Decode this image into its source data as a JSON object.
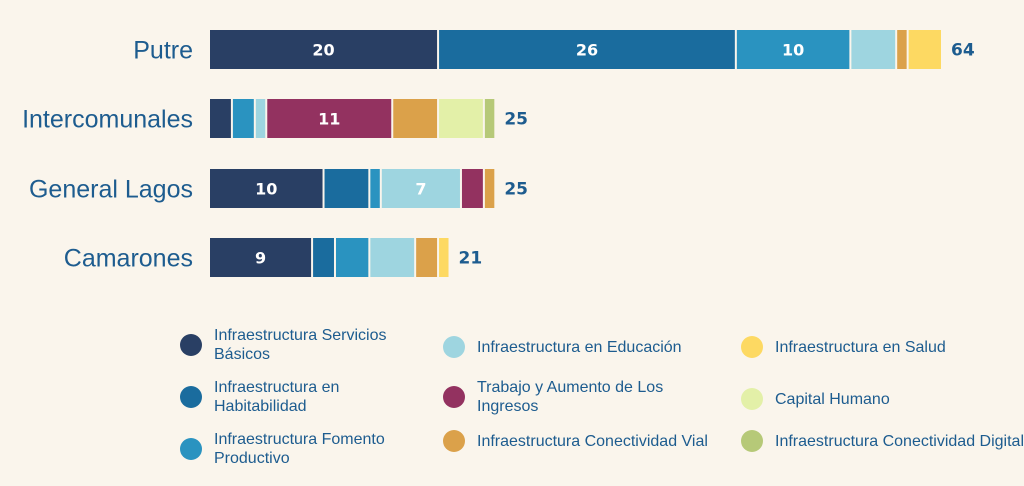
{
  "chart_data": {
    "type": "bar",
    "orientation": "horizontal",
    "stacked": true,
    "title": "",
    "xlabel": "",
    "ylabel": "",
    "xlim": [
      0,
      64
    ],
    "grid": false,
    "legend_position": "bottom",
    "categories": [
      "Putre",
      "Intercomunales",
      "General Lagos",
      "Camarones"
    ],
    "totals": [
      64,
      25,
      25,
      21
    ],
    "series": [
      {
        "name": "Infraestructura Servicios Básicos",
        "color": "#293f64",
        "values": [
          20,
          2,
          10,
          9
        ],
        "labels": [
          "20",
          "",
          "10",
          "9"
        ]
      },
      {
        "name": "Infraestructura en Habitabilidad",
        "color": "#1a6c9e",
        "values": [
          26,
          0,
          4,
          2
        ],
        "labels": [
          "26",
          "",
          "",
          ""
        ]
      },
      {
        "name": "Infraestructura Fomento Productivo",
        "color": "#2a93c0",
        "values": [
          10,
          2,
          1,
          3
        ],
        "labels": [
          "10",
          "",
          "",
          ""
        ]
      },
      {
        "name": "Infraestructura en Educación",
        "color": "#9ed5e0",
        "values": [
          4,
          1,
          7,
          4
        ],
        "labels": [
          "",
          "",
          "7",
          ""
        ]
      },
      {
        "name": "Trabajo y Aumento de Los Ingresos",
        "color": "#933260",
        "values": [
          0,
          11,
          2,
          0
        ],
        "labels": [
          "",
          "11",
          "",
          ""
        ]
      },
      {
        "name": "Infraestructura Conectividad Vial",
        "color": "#dba14a",
        "values": [
          1,
          4,
          1,
          2
        ],
        "labels": [
          "",
          "",
          "",
          ""
        ]
      },
      {
        "name": "Infraestructura en Salud",
        "color": "#fdd962",
        "values": [
          3,
          0,
          0,
          1
        ],
        "labels": [
          "",
          "",
          "",
          ""
        ]
      },
      {
        "name": "Capital Humano",
        "color": "#e3f0a8",
        "values": [
          0,
          4,
          0,
          0
        ],
        "labels": [
          "",
          "",
          "",
          ""
        ]
      },
      {
        "name": "Infraestructura Conectividad Digital",
        "color": "#b6c978",
        "values": [
          0,
          1,
          0,
          0
        ],
        "labels": [
          "",
          "",
          "",
          ""
        ]
      }
    ]
  },
  "legend": {
    "items": [
      {
        "label": "Infraestructura Servicios Básicos",
        "color": "#293f64"
      },
      {
        "label": "Infraestructura en Habitabilidad",
        "color": "#1a6c9e"
      },
      {
        "label": "Infraestructura Fomento Productivo",
        "color": "#2a93c0"
      },
      {
        "label": "Infraestructura en Educación",
        "color": "#9ed5e0"
      },
      {
        "label": "Trabajo y Aumento de Los Ingresos",
        "color": "#933260"
      },
      {
        "label": "Infraestructura Conectividad Vial",
        "color": "#dba14a"
      },
      {
        "label": "Infraestructura en Salud",
        "color": "#fdd962"
      },
      {
        "label": "Capital Humano",
        "color": "#e3f0a8"
      },
      {
        "label": "Infraestructura Conectividad Digital",
        "color": "#b6c978"
      }
    ]
  }
}
